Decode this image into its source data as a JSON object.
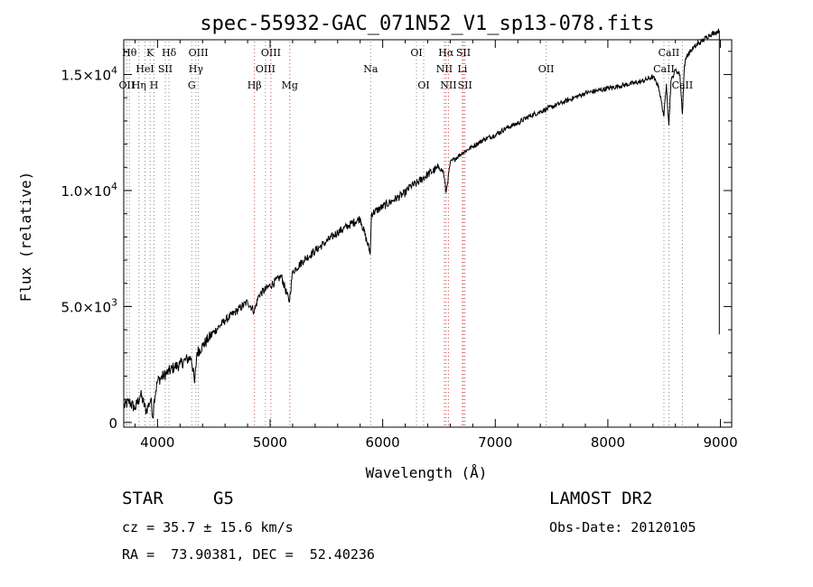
{
  "chart_data": {
    "type": "line",
    "title": "spec-55932-GAC_071N52_V1_sp13-078.fits",
    "xlabel": "Wavelength (Å)",
    "ylabel": "Flux (relative)",
    "xlim": [
      3700,
      9100
    ],
    "ylim": [
      -200,
      16500
    ],
    "xticks": [
      {
        "value": 4000,
        "label": "4000"
      },
      {
        "value": 5000,
        "label": "5000"
      },
      {
        "value": 6000,
        "label": "6000"
      },
      {
        "value": 7000,
        "label": "7000"
      },
      {
        "value": 8000,
        "label": "8000"
      },
      {
        "value": 9000,
        "label": "9000"
      }
    ],
    "yticks": [
      {
        "value": 0,
        "label": "0",
        "mant": "0",
        "exp": ""
      },
      {
        "value": 5000,
        "label": "5.0×10^3",
        "mant": "5.0×10",
        "exp": "3"
      },
      {
        "value": 10000,
        "label": "1.0×10^4",
        "mant": "1.0×10",
        "exp": "4"
      },
      {
        "value": 15000,
        "label": "1.5×10^4",
        "mant": "1.5×10",
        "exp": "4"
      }
    ],
    "series": [
      {
        "name": "flux",
        "x": [
          3700,
          3750,
          3800,
          3850,
          3900,
          3940,
          3960,
          3970,
          4000,
          4050,
          4100,
          4150,
          4200,
          4250,
          4300,
          4330,
          4350,
          4400,
          4450,
          4500,
          4600,
          4700,
          4800,
          4860,
          4900,
          5000,
          5100,
          5170,
          5200,
          5300,
          5400,
          5500,
          5600,
          5700,
          5800,
          5890,
          5900,
          6000,
          6100,
          6200,
          6250,
          6300,
          6400,
          6500,
          6540,
          6563,
          6600,
          6700,
          6800,
          6900,
          7000,
          7100,
          7200,
          7300,
          7400,
          7500,
          7600,
          7700,
          7800,
          7900,
          8000,
          8100,
          8200,
          8300,
          8400,
          8450,
          8498,
          8520,
          8542,
          8560,
          8600,
          8640,
          8662,
          8680,
          8700,
          8750,
          8800,
          8850,
          8900,
          8950,
          8990
        ],
        "y": [
          700,
          900,
          600,
          1200,
          500,
          1000,
          200,
          1000,
          1800,
          2000,
          2200,
          2400,
          2500,
          2700,
          2800,
          1700,
          3000,
          3300,
          3600,
          3900,
          4400,
          4800,
          5200,
          4800,
          5500,
          5900,
          6300,
          5200,
          6500,
          7000,
          7400,
          7800,
          8200,
          8500,
          8800,
          7300,
          9000,
          9300,
          9600,
          9900,
          10200,
          10300,
          10700,
          11000,
          10800,
          9900,
          11200,
          11600,
          11900,
          12200,
          12400,
          12700,
          12900,
          13200,
          13400,
          13600,
          13800,
          14000,
          14200,
          14300,
          14400,
          14500,
          14600,
          14700,
          14900,
          14500,
          13200,
          14600,
          12800,
          14700,
          15200,
          15000,
          13300,
          15400,
          15800,
          16100,
          16300,
          16500,
          16700,
          16800,
          16900
        ]
      }
    ],
    "lines": [
      {
        "x": 3750,
        "label": "Hθ",
        "row": 0,
        "color": "#888888"
      },
      {
        "x": 3727,
        "label": "OII",
        "row": 2,
        "color": "#888888"
      },
      {
        "x": 3835,
        "label": "Hη",
        "row": 2,
        "color": "#888888"
      },
      {
        "x": 3934,
        "label": "K",
        "row": 0,
        "color": "#888888"
      },
      {
        "x": 3889,
        "label": "HeI",
        "row": 1,
        "color": "#888888"
      },
      {
        "x": 3969,
        "label": "H",
        "row": 2,
        "color": "#888888"
      },
      {
        "x": 4069,
        "label": "SII",
        "row": 1,
        "color": "#888888"
      },
      {
        "x": 4102,
        "label": "Hδ",
        "row": 0,
        "color": "#888888"
      },
      {
        "x": 4341,
        "label": "Hγ",
        "row": 1,
        "color": "#888888"
      },
      {
        "x": 4304,
        "label": "G",
        "row": 2,
        "color": "#888888"
      },
      {
        "x": 4363,
        "label": "OIII",
        "row": 0,
        "color": "#888888"
      },
      {
        "x": 4861,
        "label": "Hβ",
        "row": 2,
        "color": "#cc4444"
      },
      {
        "x": 4959,
        "label": "OIII",
        "row": 1,
        "color": "#888888"
      },
      {
        "x": 5007,
        "label": "OIII",
        "row": 0,
        "color": "#cc4444"
      },
      {
        "x": 5175,
        "label": "Mg",
        "row": 2,
        "color": "#cc4444"
      },
      {
        "x": 5893,
        "label": "Na",
        "row": 1,
        "color": "#888888"
      },
      {
        "x": 6300,
        "label": "OI",
        "row": 0,
        "color": "#888888"
      },
      {
        "x": 6364,
        "label": "OI",
        "row": 2,
        "color": "#888888"
      },
      {
        "x": 6548,
        "label": "NII",
        "row": 1,
        "color": "#cc4444"
      },
      {
        "x": 6563,
        "label": "Hα",
        "row": 0,
        "color": "#cc4444"
      },
      {
        "x": 6584,
        "label": "NII",
        "row": 2,
        "color": "#cc4444"
      },
      {
        "x": 6708,
        "label": "Li",
        "row": 1,
        "color": "#cc4444"
      },
      {
        "x": 6717,
        "label": "SII",
        "row": 0,
        "color": "#cc4444"
      },
      {
        "x": 6731,
        "label": "SII",
        "row": 2,
        "color": "#cc4444"
      },
      {
        "x": 7452,
        "label": "OII",
        "row": 1,
        "color": "#888888"
      },
      {
        "x": 8498,
        "label": "CaII",
        "row": 1,
        "color": "#888888"
      },
      {
        "x": 8542,
        "label": "CaII",
        "row": 0,
        "color": "#888888"
      },
      {
        "x": 8662,
        "label": "CaII",
        "row": 2,
        "color": "#888888"
      }
    ]
  },
  "info": {
    "class_label": "STAR",
    "subclass": "G5",
    "survey": "LAMOST DR2",
    "cz": "cz = 35.7 ± 15.6 km/s",
    "obs_date": "Obs-Date: 20120105",
    "coords": "RA =  73.90381, DEC =  52.40236"
  }
}
